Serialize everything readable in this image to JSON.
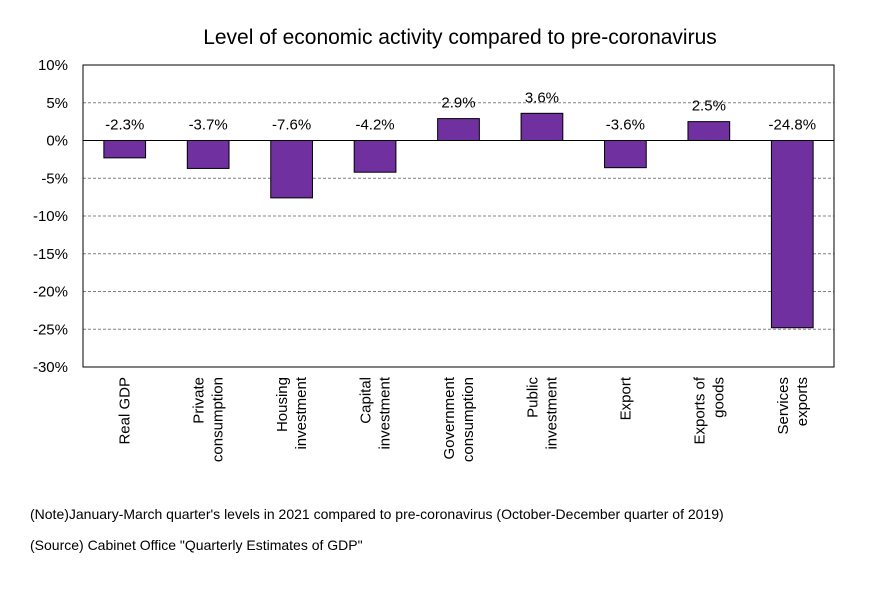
{
  "chart_data": {
    "type": "bar",
    "title": "Level of economic activity compared to pre-coronavirus",
    "categories": [
      [
        "Real GDP"
      ],
      [
        "Private",
        "consumption"
      ],
      [
        "Housing",
        "investment"
      ],
      [
        "Capital",
        "investment"
      ],
      [
        "Government",
        "consumption"
      ],
      [
        "Public",
        "investment"
      ],
      [
        "Export"
      ],
      [
        "Exports of",
        "goods"
      ],
      [
        "Services",
        "exports"
      ]
    ],
    "values": [
      -2.3,
      -3.7,
      -7.6,
      -4.2,
      2.9,
      3.6,
      -3.6,
      2.5,
      -24.8
    ],
    "data_labels": [
      "-2.3%",
      "-3.7%",
      "-7.6%",
      "-4.2%",
      "2.9%",
      "3.6%",
      "-3.6%",
      "2.5%",
      "-24.8%"
    ],
    "ylim": [
      -30,
      10
    ],
    "yticks": [
      10,
      5,
      0,
      -5,
      -10,
      -15,
      -20,
      -25,
      -30
    ],
    "ytick_labels": [
      "10%",
      "5%",
      "0%",
      "-5%",
      "-10%",
      "-15%",
      "-20%",
      "-25%",
      "-30%"
    ],
    "xlabel": "",
    "ylabel": "",
    "grid": true,
    "bar_color": "#7030a0",
    "legend": "none"
  },
  "notes": {
    "note": "(Note)January-March quarter's levels in 2021 compared to pre-coronavirus (October-December quarter of 2019)",
    "source": "(Source) Cabinet Office \"Quarterly Estimates of GDP\""
  }
}
